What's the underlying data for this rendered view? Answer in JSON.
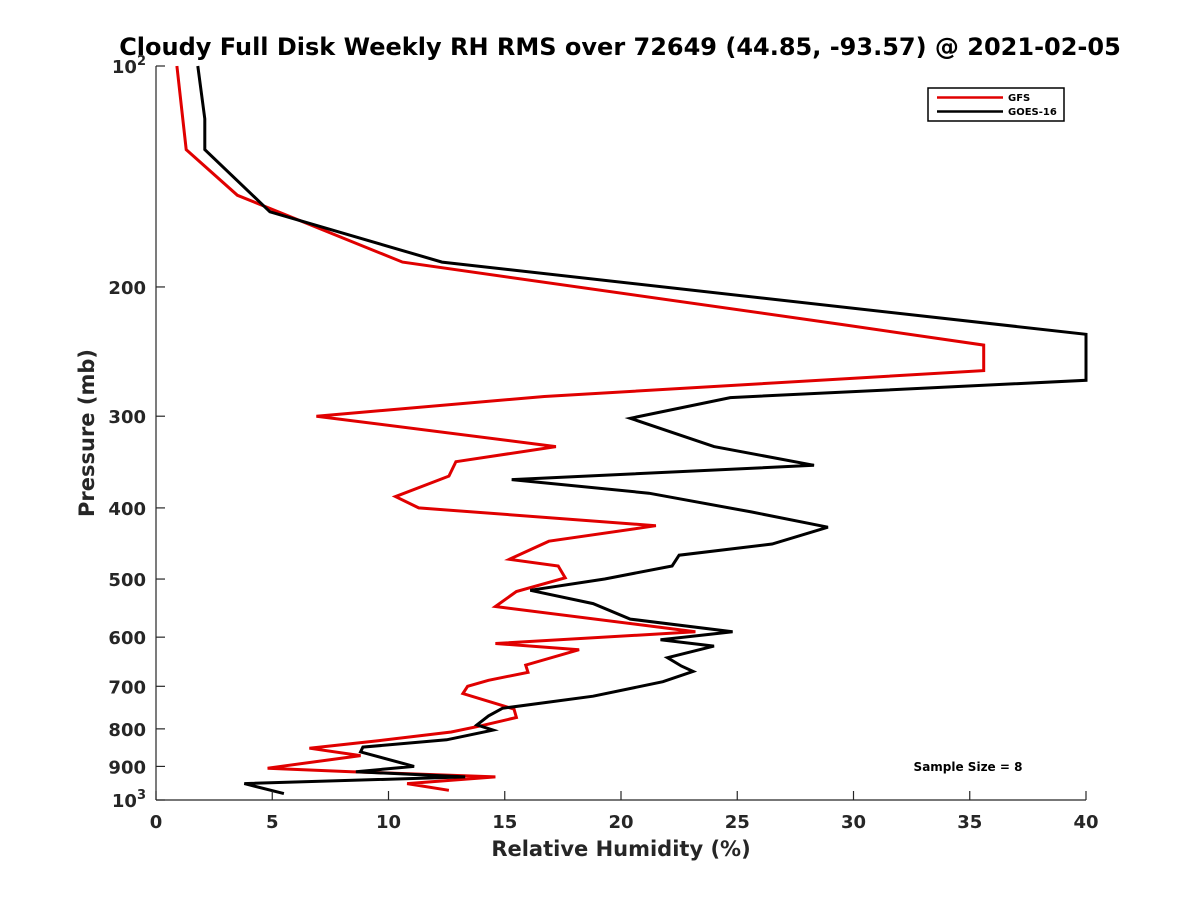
{
  "chart_data": {
    "type": "line",
    "title": "Cloudy Full Disk Weekly RH RMS over 72649 (44.85, -93.57) @ 2021-02-05",
    "xlabel": "Relative Humidity (%)",
    "ylabel": "Pressure (mb)",
    "xlim": [
      0,
      40
    ],
    "ylim": [
      100,
      1000
    ],
    "y_scale": "log",
    "y_reversed": true,
    "x_ticks": [
      "0",
      "5",
      "10",
      "15",
      "20",
      "25",
      "30",
      "35",
      "40"
    ],
    "y_ticks": [
      {
        "value": 100,
        "base": "10",
        "exp": "2"
      },
      {
        "value": 200,
        "label": "200"
      },
      {
        "value": 300,
        "label": "300"
      },
      {
        "value": 400,
        "label": "400"
      },
      {
        "value": 500,
        "label": "500"
      },
      {
        "value": 600,
        "label": "600"
      },
      {
        "value": 700,
        "label": "700"
      },
      {
        "value": 800,
        "label": "800"
      },
      {
        "value": 900,
        "label": "900"
      },
      {
        "value": 1000,
        "base": "10",
        "exp": "3"
      }
    ],
    "legend_position": "top-right",
    "annotation": "Sample Size = 8",
    "series": [
      {
        "name": "GFS",
        "color": "#e00000",
        "points": [
          [
            0.9,
            100
          ],
          [
            1.3,
            130
          ],
          [
            3.5,
            150
          ],
          [
            10.6,
            185
          ],
          [
            29.5,
            225
          ],
          [
            35.6,
            240
          ],
          [
            35.6,
            260
          ],
          [
            16.7,
            282
          ],
          [
            6.9,
            300
          ],
          [
            17.2,
            330
          ],
          [
            12.9,
            346
          ],
          [
            12.6,
            362
          ],
          [
            10.3,
            386
          ],
          [
            11.3,
            400
          ],
          [
            21.5,
            423
          ],
          [
            16.9,
            444
          ],
          [
            15.2,
            470
          ],
          [
            17.3,
            480
          ],
          [
            17.6,
            498
          ],
          [
            15.5,
            520
          ],
          [
            14.6,
            545
          ],
          [
            23.2,
            590
          ],
          [
            14.6,
            612
          ],
          [
            18.2,
            624
          ],
          [
            15.9,
            655
          ],
          [
            16.0,
            670
          ],
          [
            14.3,
            687
          ],
          [
            13.4,
            700
          ],
          [
            13.2,
            716
          ],
          [
            15.4,
            752
          ],
          [
            15.5,
            772
          ],
          [
            14.0,
            792
          ],
          [
            12.7,
            808
          ],
          [
            9.6,
            830
          ],
          [
            6.6,
            850
          ],
          [
            8.8,
            870
          ],
          [
            4.8,
            905
          ],
          [
            8.4,
            915
          ],
          [
            14.6,
            930
          ],
          [
            10.8,
            950
          ],
          [
            12.6,
            970
          ]
        ]
      },
      {
        "name": "GOES-16",
        "color": "#000000",
        "points": [
          [
            1.8,
            100
          ],
          [
            2.1,
            118
          ],
          [
            2.1,
            130
          ],
          [
            4.9,
            158
          ],
          [
            12.3,
            185
          ],
          [
            40.0,
            232
          ],
          [
            40.0,
            268
          ],
          [
            24.7,
            283
          ],
          [
            20.4,
            302
          ],
          [
            24.0,
            330
          ],
          [
            28.3,
            350
          ],
          [
            15.3,
            366
          ],
          [
            21.2,
            382
          ],
          [
            25.6,
            405
          ],
          [
            28.9,
            425
          ],
          [
            26.5,
            448
          ],
          [
            22.5,
            464
          ],
          [
            22.2,
            480
          ],
          [
            19.3,
            500
          ],
          [
            16.1,
            518
          ],
          [
            18.8,
            540
          ],
          [
            20.4,
            567
          ],
          [
            24.8,
            590
          ],
          [
            21.7,
            605
          ],
          [
            24.0,
            617
          ],
          [
            22.0,
            640
          ],
          [
            22.6,
            657
          ],
          [
            23.1,
            668
          ],
          [
            21.8,
            690
          ],
          [
            18.8,
            722
          ],
          [
            14.9,
            750
          ],
          [
            14.3,
            768
          ],
          [
            13.8,
            790
          ],
          [
            14.5,
            803
          ],
          [
            12.5,
            828
          ],
          [
            8.9,
            847
          ],
          [
            8.8,
            860
          ],
          [
            11.1,
            900
          ],
          [
            8.6,
            915
          ],
          [
            13.3,
            930
          ],
          [
            3.8,
            950
          ],
          [
            5.5,
            980
          ]
        ]
      }
    ]
  }
}
